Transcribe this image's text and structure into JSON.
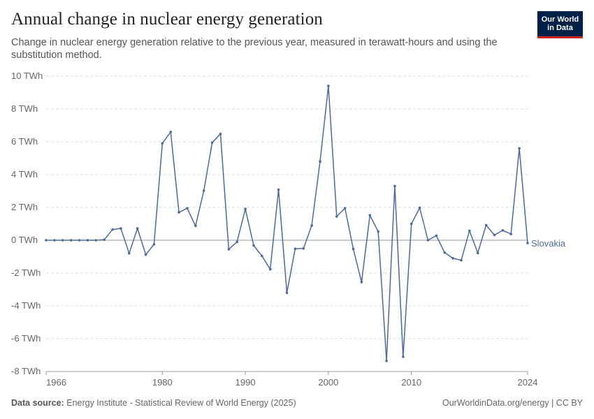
{
  "header": {
    "title": "Annual change in nuclear energy generation",
    "subtitle": "Change in nuclear energy generation relative to the previous year, measured in terawatt-hours and using the substitution method."
  },
  "logo": {
    "line1": "Our World",
    "line2": "in Data"
  },
  "footer": {
    "source_label": "Data source:",
    "source_text": "Energy Institute - Statistical Review of World Energy (2025)",
    "right_text": "OurWorldinData.org/energy | CC BY"
  },
  "colors": {
    "series": "#4c6a9c",
    "grid": "#dddddd",
    "zero_line": "#999999"
  },
  "chart_data": {
    "type": "line",
    "ylabel": "",
    "ylim": [
      -8,
      10
    ],
    "yticks": [
      -8,
      -6,
      -4,
      -2,
      0,
      2,
      4,
      6,
      8,
      10
    ],
    "ytick_labels": [
      "-8 TWh",
      "-6 TWh",
      "-4 TWh",
      "-2 TWh",
      "0 TWh",
      "2 TWh",
      "4 TWh",
      "6 TWh",
      "8 TWh",
      "10 TWh"
    ],
    "xlim": [
      1966,
      2024
    ],
    "xticks": [
      1966,
      1980,
      1990,
      2000,
      2010,
      2024
    ],
    "xtick_labels": [
      "1966",
      "1980",
      "1990",
      "2000",
      "2010",
      "2024"
    ],
    "grid": true,
    "series": [
      {
        "name": "Slovakia",
        "x": [
          1966,
          1967,
          1968,
          1969,
          1970,
          1971,
          1972,
          1973,
          1974,
          1975,
          1976,
          1977,
          1978,
          1979,
          1980,
          1981,
          1982,
          1983,
          1984,
          1985,
          1986,
          1987,
          1988,
          1989,
          1990,
          1991,
          1992,
          1993,
          1994,
          1995,
          1996,
          1997,
          1998,
          1999,
          2000,
          2001,
          2002,
          2003,
          2004,
          2005,
          2006,
          2007,
          2008,
          2009,
          2010,
          2011,
          2012,
          2013,
          2014,
          2015,
          2016,
          2017,
          2018,
          2019,
          2020,
          2021,
          2022,
          2023,
          2024
        ],
        "values": [
          0,
          0,
          0,
          0,
          0,
          0,
          0,
          0.03,
          0.65,
          0.72,
          -0.8,
          0.72,
          -0.88,
          -0.25,
          5.9,
          6.6,
          1.7,
          1.95,
          0.87,
          3.02,
          5.95,
          6.48,
          -0.55,
          -0.1,
          1.9,
          -0.32,
          -0.96,
          -1.77,
          3.08,
          -3.2,
          -0.52,
          -0.5,
          0.9,
          4.8,
          9.4,
          1.45,
          1.95,
          -0.53,
          -2.55,
          1.52,
          0.53,
          -7.35,
          3.3,
          -7.1,
          1.0,
          1.98,
          0.0,
          0.28,
          -0.75,
          -1.1,
          -1.22,
          0.58,
          -0.78,
          0.92,
          0.32,
          0.6,
          0.38,
          5.6,
          -0.17
        ]
      }
    ]
  }
}
